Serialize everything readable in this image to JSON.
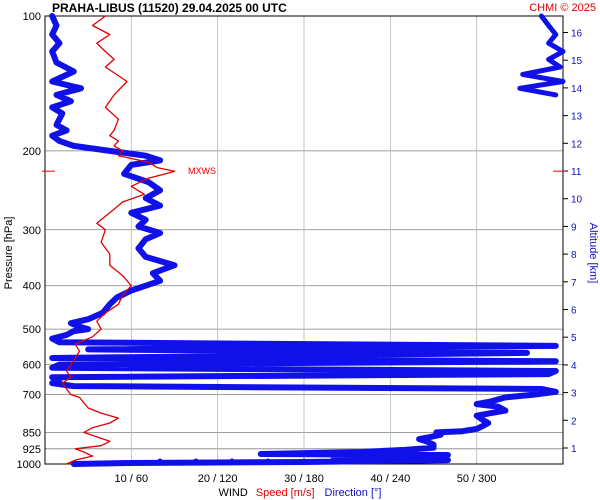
{
  "chart_data": {
    "type": "line",
    "title": "PRAHA-LIBUS (11520)    29.04.2025 00 UTC",
    "credit": "CHMI © 2025",
    "ylabel": "Pressure [hPa]",
    "y2label": "Altitude [km]",
    "xlabel": {
      "prefix": "WIND",
      "speed": "Speed [m/s]",
      "direction": "Direction [°]"
    },
    "pressure_ticks": [
      "100",
      "200",
      "300",
      "400",
      "500",
      "600",
      "700",
      "850",
      "925",
      "1000"
    ],
    "pressure_values": [
      100,
      200,
      300,
      400,
      500,
      600,
      700,
      850,
      925,
      1000
    ],
    "altitude_ticks": [
      "1",
      "2",
      "3",
      "4",
      "5",
      "6",
      "7",
      "8",
      "9",
      "10",
      "11",
      "12",
      "13",
      "14",
      "15",
      "16"
    ],
    "x_ticks": [
      "10 / 60",
      "20 / 120",
      "30 / 180",
      "40 / 240",
      "50 / 300"
    ],
    "x_tick_speed": [
      10,
      20,
      30,
      40,
      50
    ],
    "speed_range": [
      0,
      60
    ],
    "direction_range": [
      0,
      360
    ],
    "annotation": {
      "label": "MXWS",
      "pressure": 222,
      "speed": 15
    },
    "colors": {
      "speed": "#e00000",
      "direction": "#1010e8",
      "grid": "#808080"
    },
    "series": [
      {
        "name": "Speed [m/s]",
        "points": [
          [
            1000,
            2.5
          ],
          [
            980,
            3.5
          ],
          [
            960,
            5.5
          ],
          [
            940,
            4.5
          ],
          [
            925,
            3.5
          ],
          [
            910,
            6.5
          ],
          [
            890,
            7.5
          ],
          [
            870,
            6
          ],
          [
            850,
            4.5
          ],
          [
            830,
            5.5
          ],
          [
            810,
            7.5
          ],
          [
            790,
            8.5
          ],
          [
            770,
            6.5
          ],
          [
            750,
            5
          ],
          [
            730,
            4.5
          ],
          [
            710,
            4
          ],
          [
            700,
            3
          ],
          [
            680,
            2.5
          ],
          [
            660,
            2
          ],
          [
            640,
            3
          ],
          [
            620,
            2.5
          ],
          [
            600,
            3
          ],
          [
            580,
            3.5
          ],
          [
            560,
            4
          ],
          [
            540,
            3.5
          ],
          [
            520,
            5.5
          ],
          [
            500,
            6.5
          ],
          [
            480,
            6
          ],
          [
            460,
            7
          ],
          [
            440,
            8.5
          ],
          [
            420,
            9
          ],
          [
            400,
            10
          ],
          [
            380,
            9
          ],
          [
            360,
            7.5
          ],
          [
            340,
            7.5
          ],
          [
            320,
            6.5
          ],
          [
            300,
            7
          ],
          [
            290,
            6
          ],
          [
            280,
            7
          ],
          [
            270,
            8
          ],
          [
            260,
            9
          ],
          [
            250,
            11.5
          ],
          [
            240,
            10
          ],
          [
            230,
            12
          ],
          [
            225,
            14
          ],
          [
            222,
            15
          ],
          [
            218,
            13
          ],
          [
            212,
            12
          ],
          [
            205,
            8.5
          ],
          [
            200,
            9
          ],
          [
            195,
            8
          ],
          [
            190,
            8.5
          ],
          [
            185,
            7.5
          ],
          [
            180,
            8
          ],
          [
            170,
            8.5
          ],
          [
            160,
            7
          ],
          [
            150,
            8
          ],
          [
            140,
            9.5
          ],
          [
            130,
            7
          ],
          [
            125,
            8
          ],
          [
            120,
            7
          ],
          [
            115,
            6
          ],
          [
            110,
            7.5
          ],
          [
            105,
            5.5
          ],
          [
            100,
            7
          ]
        ]
      },
      {
        "name": "Direction [°]",
        "points": [
          [
            1000,
            20
          ],
          [
            995,
            60
          ],
          [
            990,
            180
          ],
          [
            980,
            280
          ],
          [
            970,
            260
          ],
          [
            960,
            200
          ],
          [
            955,
            280
          ],
          [
            950,
            150
          ],
          [
            940,
            220
          ],
          [
            930,
            250
          ],
          [
            920,
            270
          ],
          [
            905,
            270
          ],
          [
            890,
            265
          ],
          [
            880,
            260
          ],
          [
            870,
            268
          ],
          [
            860,
            275
          ],
          [
            850,
            272
          ],
          [
            845,
            290
          ],
          [
            835,
            300
          ],
          [
            820,
            305
          ],
          [
            810,
            308
          ],
          [
            800,
            305
          ],
          [
            780,
            300
          ],
          [
            770,
            310
          ],
          [
            760,
            320
          ],
          [
            745,
            315
          ],
          [
            735,
            300
          ],
          [
            725,
            310
          ],
          [
            710,
            320
          ],
          [
            700,
            340
          ],
          [
            690,
            355
          ],
          [
            680,
            345
          ],
          [
            670,
            20
          ],
          [
            660,
            5
          ],
          [
            650,
            10
          ],
          [
            640,
            5
          ],
          [
            630,
            350
          ],
          [
            620,
            355
          ],
          [
            610,
            5
          ],
          [
            600,
            10
          ],
          [
            590,
            355
          ],
          [
            580,
            5
          ],
          [
            565,
            335
          ],
          [
            555,
            30
          ],
          [
            545,
            355
          ],
          [
            535,
            10
          ],
          [
            525,
            5
          ],
          [
            515,
            15
          ],
          [
            505,
            20
          ],
          [
            500,
            30
          ],
          [
            495,
            25
          ],
          [
            485,
            18
          ],
          [
            475,
            30
          ],
          [
            460,
            40
          ],
          [
            440,
            45
          ],
          [
            425,
            50
          ],
          [
            410,
            60
          ],
          [
            400,
            70
          ],
          [
            390,
            80
          ],
          [
            375,
            75
          ],
          [
            360,
            90
          ],
          [
            345,
            70
          ],
          [
            330,
            65
          ],
          [
            315,
            70
          ],
          [
            305,
            80
          ],
          [
            295,
            65
          ],
          [
            285,
            70
          ],
          [
            275,
            60
          ],
          [
            265,
            80
          ],
          [
            255,
            70
          ],
          [
            245,
            80
          ],
          [
            235,
            72
          ],
          [
            225,
            55
          ],
          [
            215,
            60
          ],
          [
            210,
            80
          ],
          [
            205,
            70
          ],
          [
            200,
            45
          ],
          [
            195,
            20
          ],
          [
            190,
            10
          ],
          [
            185,
            5
          ],
          [
            180,
            15
          ],
          [
            175,
            8
          ],
          [
            165,
            12
          ],
          [
            160,
            5
          ],
          [
            155,
            18
          ],
          [
            150,
            8
          ],
          [
            145,
            25
          ],
          [
            140,
            5
          ],
          [
            133,
            20
          ],
          [
            127,
            8
          ],
          [
            120,
            5
          ],
          [
            115,
            10
          ],
          [
            110,
            5
          ],
          [
            105,
            8
          ],
          [
            100,
            5
          ]
        ]
      }
    ],
    "upper_direction": [
      [
        150,
        355
      ],
      [
        145,
        330
      ],
      [
        140,
        360
      ],
      [
        135,
        332
      ],
      [
        130,
        358
      ],
      [
        125,
        350
      ],
      [
        120,
        360
      ],
      [
        115,
        350
      ],
      [
        110,
        355
      ],
      [
        105,
        350
      ],
      [
        100,
        345
      ]
    ],
    "upper_direction_alt_km": [
      [
        13.4,
        355
      ],
      [
        13.1,
        335
      ],
      [
        12.9,
        360
      ],
      [
        12.7,
        332
      ],
      [
        12.5,
        358
      ]
    ]
  }
}
